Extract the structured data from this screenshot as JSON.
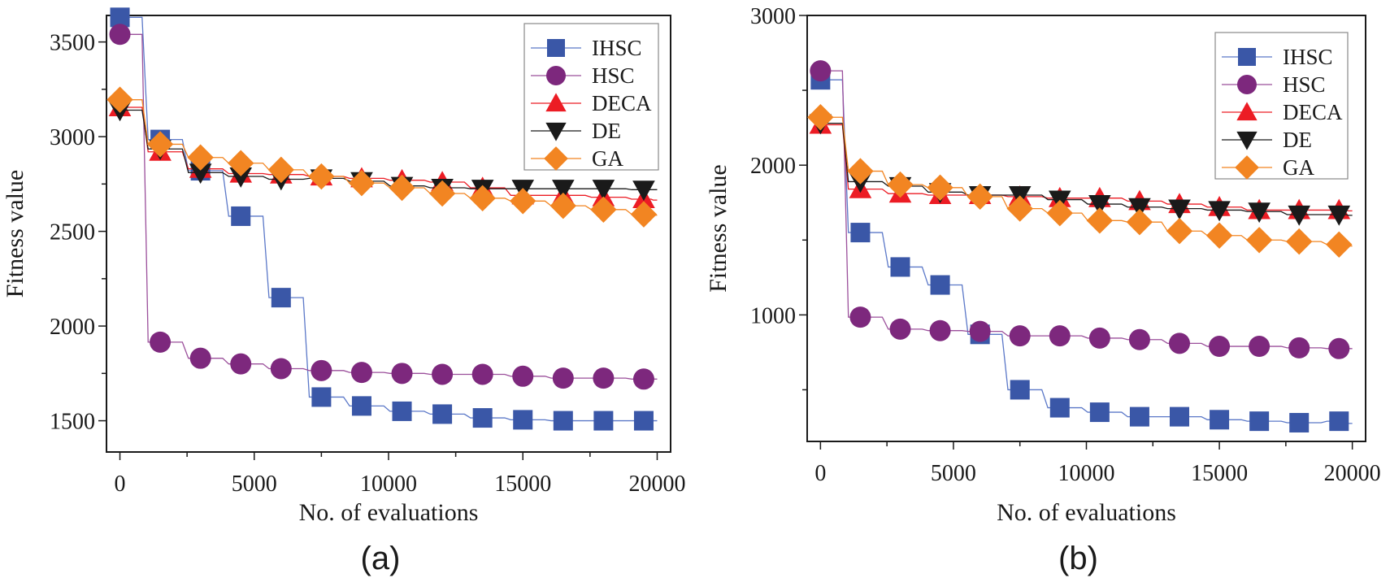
{
  "chart_data": [
    {
      "type": "line",
      "panel_label": "(a)",
      "title": "",
      "xlabel": "No. of evaluations",
      "ylabel": "Fitness value",
      "xlim": [
        -500,
        20500
      ],
      "ylim": [
        1335,
        3640
      ],
      "x_ticks": [
        0,
        5000,
        10000,
        15000,
        20000
      ],
      "x_tick_labels": [
        "0",
        "5000",
        "10000",
        "15000",
        "20000"
      ],
      "x_minor_ticks": [
        2500,
        7500,
        12500,
        17500
      ],
      "y_ticks": [
        1500,
        2000,
        2500,
        3000,
        3500
      ],
      "y_tick_labels": [
        "1500",
        "2000",
        "2500",
        "3000",
        "3500"
      ],
      "y_minor_ticks": [
        1750,
        2250,
        2750,
        3250
      ],
      "grid": false,
      "legend_position": "top-right",
      "x": [
        0,
        1500,
        3000,
        4500,
        6000,
        7500,
        9000,
        10500,
        12000,
        13500,
        15000,
        16500,
        18000,
        19500
      ],
      "series": [
        {
          "name": "IHSC",
          "marker": "square",
          "color": "#3a57a7",
          "line_color": "#5b78c8",
          "values": [
            3630,
            2985,
            2820,
            2580,
            2150,
            1625,
            1578,
            1550,
            1535,
            1515,
            1505,
            1500,
            1500,
            1500
          ],
          "line_end": 1500
        },
        {
          "name": "HSC",
          "marker": "circle",
          "color": "#7d287d",
          "line_color": "#9b4f9b",
          "values": [
            3540,
            1915,
            1830,
            1800,
            1775,
            1765,
            1755,
            1750,
            1745,
            1745,
            1735,
            1725,
            1725,
            1720
          ],
          "line_end": 1720
        },
        {
          "name": "DECA",
          "marker": "triangle-up",
          "color": "#ec1c24",
          "line_color": "#ec1c24",
          "values": [
            3155,
            2920,
            2830,
            2805,
            2800,
            2790,
            2780,
            2770,
            2760,
            2730,
            2690,
            2690,
            2680,
            2670
          ],
          "line_end": 2665
        },
        {
          "name": "DE",
          "marker": "triangle-down",
          "color": "#1a1a1a",
          "line_color": "#1a1a1a",
          "values": [
            3140,
            2935,
            2810,
            2790,
            2775,
            2780,
            2765,
            2740,
            2730,
            2725,
            2725,
            2725,
            2725,
            2720
          ],
          "line_end": 2720
        },
        {
          "name": "GA",
          "marker": "diamond",
          "color": "#f28522",
          "line_color": "#f28522",
          "values": [
            3195,
            2960,
            2890,
            2860,
            2825,
            2790,
            2755,
            2730,
            2700,
            2675,
            2660,
            2635,
            2615,
            2590
          ],
          "line_end": 2585
        }
      ]
    },
    {
      "type": "line",
      "panel_label": "(b)",
      "title": "",
      "xlabel": "No. of evaluations",
      "ylabel": "Fitness value",
      "xlim": [
        -500,
        20500
      ],
      "ylim": [
        155,
        3000
      ],
      "x_ticks": [
        0,
        5000,
        10000,
        15000,
        20000
      ],
      "x_tick_labels": [
        "0",
        "5000",
        "10000",
        "15000",
        "20000"
      ],
      "x_minor_ticks": [
        2500,
        7500,
        12500,
        17500
      ],
      "y_ticks": [
        1000,
        2000,
        3000
      ],
      "y_tick_labels": [
        "1000",
        "2000",
        "3000"
      ],
      "y_minor_ticks": [
        500,
        1500,
        2500
      ],
      "grid": false,
      "legend_position": "top-right",
      "x": [
        0,
        1500,
        3000,
        4500,
        6000,
        7500,
        9000,
        10500,
        12000,
        13500,
        15000,
        16500,
        18000,
        19500
      ],
      "series": [
        {
          "name": "IHSC",
          "marker": "square",
          "color": "#3a57a7",
          "line_color": "#5b78c8",
          "values": [
            2570,
            1550,
            1320,
            1200,
            870,
            500,
            380,
            350,
            320,
            320,
            300,
            290,
            280,
            290
          ],
          "line_end": 275
        },
        {
          "name": "HSC",
          "marker": "circle",
          "color": "#7d287d",
          "line_color": "#9b4f9b",
          "values": [
            2630,
            985,
            905,
            895,
            890,
            860,
            860,
            845,
            835,
            810,
            790,
            790,
            780,
            775
          ],
          "line_end": 775
        },
        {
          "name": "DECA",
          "marker": "triangle-up",
          "color": "#ec1c24",
          "line_color": "#ec1c24",
          "values": [
            2270,
            1840,
            1810,
            1800,
            1800,
            1790,
            1780,
            1780,
            1760,
            1740,
            1720,
            1700,
            1700,
            1700
          ],
          "line_end": 1695
        },
        {
          "name": "DE",
          "marker": "triangle-down",
          "color": "#1a1a1a",
          "line_color": "#1a1a1a",
          "values": [
            2280,
            1890,
            1860,
            1820,
            1800,
            1800,
            1770,
            1740,
            1720,
            1710,
            1700,
            1690,
            1670,
            1670
          ],
          "line_end": 1665
        },
        {
          "name": "GA",
          "marker": "diamond",
          "color": "#f28522",
          "line_color": "#f28522",
          "values": [
            2320,
            1960,
            1870,
            1850,
            1790,
            1710,
            1680,
            1630,
            1620,
            1560,
            1530,
            1500,
            1490,
            1470
          ],
          "line_end": 1460
        }
      ]
    }
  ]
}
